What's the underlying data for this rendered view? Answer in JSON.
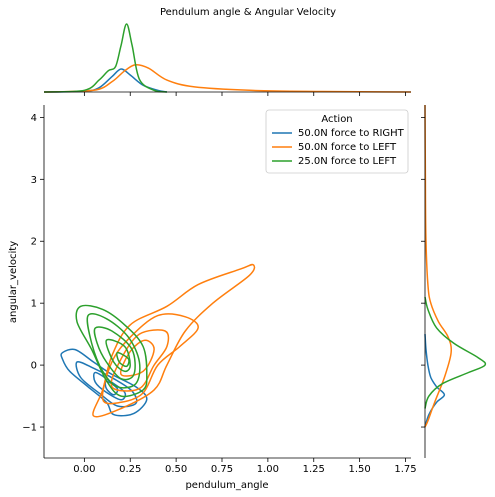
{
  "chart_data": {
    "type": "jointplot-kde",
    "title": "Pendulum angle & Angular Velocity",
    "xlabel": "pendulum_angle",
    "ylabel": "angular_velocity",
    "xlim": [
      -0.22,
      1.78
    ],
    "ylim": [
      -1.5,
      4.2
    ],
    "xticks": [
      0.0,
      0.25,
      0.5,
      0.75,
      1.0,
      1.25,
      1.5,
      1.75
    ],
    "xtick_labels": [
      "0.00",
      "0.25",
      "0.50",
      "0.75",
      "1.00",
      "1.25",
      "1.50",
      "1.75"
    ],
    "yticks": [
      -1,
      0,
      1,
      2,
      3,
      4
    ],
    "ytick_labels": [
      "−1",
      "0",
      "1",
      "2",
      "3",
      "4"
    ],
    "grid": false,
    "legend": {
      "title": "Action",
      "placement": "top-right",
      "entries": [
        "50.0N force to RIGHT",
        "50.0N force to LEFT",
        "25.0N force to LEFT"
      ]
    },
    "series": [
      {
        "name": "50.0N force to RIGHT",
        "color": "#1f77b4",
        "contours": [
          [
            [
              -0.12,
              0.2
            ],
            [
              -0.05,
              0.25
            ],
            [
              0.05,
              0.05
            ],
            [
              0.15,
              -0.15
            ],
            [
              0.28,
              -0.35
            ],
            [
              0.34,
              -0.55
            ],
            [
              0.27,
              -0.78
            ],
            [
              0.16,
              -0.8
            ],
            [
              0.12,
              -0.6
            ],
            [
              0.02,
              -0.35
            ],
            [
              -0.08,
              -0.1
            ],
            [
              -0.12,
              0.1
            ]
          ],
          [
            [
              -0.04,
              0.05
            ],
            [
              0.05,
              -0.05
            ],
            [
              0.16,
              -0.22
            ],
            [
              0.26,
              -0.42
            ],
            [
              0.28,
              -0.62
            ],
            [
              0.18,
              -0.66
            ],
            [
              0.08,
              -0.45
            ],
            [
              -0.02,
              -0.2
            ]
          ],
          [
            [
              0.06,
              -0.12
            ],
            [
              0.14,
              -0.26
            ],
            [
              0.22,
              -0.44
            ],
            [
              0.2,
              -0.56
            ],
            [
              0.12,
              -0.44
            ],
            [
              0.06,
              -0.28
            ]
          ],
          [
            [
              0.12,
              -0.26
            ],
            [
              0.18,
              -0.38
            ],
            [
              0.16,
              -0.48
            ],
            [
              0.12,
              -0.38
            ]
          ]
        ],
        "marginal_x": [
          [
            -0.22,
            0.0
          ],
          [
            0.0,
            0.01
          ],
          [
            0.08,
            0.05
          ],
          [
            0.15,
            0.18
          ],
          [
            0.2,
            0.27
          ],
          [
            0.25,
            0.2
          ],
          [
            0.32,
            0.08
          ],
          [
            0.4,
            0.02
          ],
          [
            0.45,
            0.0
          ]
        ],
        "marginal_y": [
          [
            0.5,
            0.0
          ],
          [
            0.25,
            0.01
          ],
          [
            0.0,
            0.03
          ],
          [
            -0.2,
            0.06
          ],
          [
            -0.35,
            0.12
          ],
          [
            -0.48,
            0.2
          ],
          [
            -0.6,
            0.12
          ],
          [
            -0.8,
            0.04
          ],
          [
            -1.0,
            0.0
          ]
        ]
      },
      {
        "name": "50.0N force to LEFT",
        "color": "#ff7f0e",
        "contours": [
          [
            [
              0.05,
              -0.82
            ],
            [
              0.1,
              -0.4
            ],
            [
              0.15,
              0.15
            ],
            [
              0.25,
              0.65
            ],
            [
              0.45,
              0.95
            ],
            [
              0.62,
              1.3
            ],
            [
              0.85,
              1.55
            ],
            [
              0.92,
              1.62
            ],
            [
              0.9,
              1.45
            ],
            [
              0.7,
              1.0
            ],
            [
              0.55,
              0.55
            ],
            [
              0.45,
              0.0
            ],
            [
              0.38,
              -0.4
            ],
            [
              0.2,
              -0.7
            ]
          ],
          [
            [
              0.1,
              -0.55
            ],
            [
              0.15,
              0.05
            ],
            [
              0.25,
              0.45
            ],
            [
              0.4,
              0.8
            ],
            [
              0.55,
              0.78
            ],
            [
              0.62,
              0.6
            ],
            [
              0.52,
              0.3
            ],
            [
              0.4,
              0.0
            ],
            [
              0.32,
              -0.45
            ],
            [
              0.2,
              -0.6
            ]
          ],
          [
            [
              0.15,
              -0.35
            ],
            [
              0.2,
              0.1
            ],
            [
              0.3,
              0.5
            ],
            [
              0.44,
              0.55
            ],
            [
              0.45,
              0.3
            ],
            [
              0.38,
              0.0
            ],
            [
              0.3,
              -0.38
            ]
          ],
          [
            [
              0.2,
              -0.15
            ],
            [
              0.25,
              0.22
            ],
            [
              0.33,
              0.4
            ],
            [
              0.38,
              0.25
            ],
            [
              0.32,
              -0.1
            ]
          ]
        ],
        "marginal_x": [
          [
            -0.22,
            0.0
          ],
          [
            0.05,
            0.02
          ],
          [
            0.15,
            0.12
          ],
          [
            0.22,
            0.25
          ],
          [
            0.28,
            0.32
          ],
          [
            0.35,
            0.28
          ],
          [
            0.45,
            0.14
          ],
          [
            0.6,
            0.06
          ],
          [
            0.9,
            0.02
          ],
          [
            1.3,
            0.006
          ],
          [
            1.78,
            0.0
          ]
        ],
        "marginal_y": [
          [
            4.2,
            0.0
          ],
          [
            3.0,
            0.004
          ],
          [
            2.0,
            0.01
          ],
          [
            1.3,
            0.03
          ],
          [
            1.0,
            0.06
          ],
          [
            0.7,
            0.14
          ],
          [
            0.45,
            0.24
          ],
          [
            0.2,
            0.27
          ],
          [
            -0.2,
            0.2
          ],
          [
            -0.6,
            0.1
          ],
          [
            -0.9,
            0.03
          ],
          [
            -1.0,
            0.0
          ]
        ]
      },
      {
        "name": "25.0N force to LEFT",
        "color": "#2ca02c",
        "contours": [
          [
            [
              -0.02,
              0.95
            ],
            [
              0.1,
              0.9
            ],
            [
              0.22,
              0.65
            ],
            [
              0.32,
              0.3
            ],
            [
              0.34,
              -0.15
            ],
            [
              0.32,
              -0.4
            ],
            [
              0.2,
              -0.5
            ],
            [
              0.12,
              -0.25
            ],
            [
              0.04,
              0.25
            ],
            [
              -0.04,
              0.7
            ]
          ],
          [
            [
              0.02,
              0.8
            ],
            [
              0.12,
              0.75
            ],
            [
              0.24,
              0.45
            ],
            [
              0.3,
              0.05
            ],
            [
              0.28,
              -0.3
            ],
            [
              0.18,
              -0.35
            ],
            [
              0.1,
              -0.1
            ],
            [
              0.04,
              0.35
            ]
          ],
          [
            [
              0.06,
              0.6
            ],
            [
              0.15,
              0.55
            ],
            [
              0.26,
              0.25
            ],
            [
              0.27,
              -0.15
            ],
            [
              0.2,
              -0.22
            ],
            [
              0.12,
              0.05
            ],
            [
              0.07,
              0.35
            ]
          ],
          [
            [
              0.12,
              0.4
            ],
            [
              0.22,
              0.3
            ],
            [
              0.25,
              0.0
            ],
            [
              0.22,
              -0.1
            ],
            [
              0.16,
              0.05
            ]
          ],
          [
            [
              0.18,
              0.2
            ],
            [
              0.24,
              0.1
            ],
            [
              0.23,
              -0.02
            ],
            [
              0.19,
              0.05
            ]
          ]
        ],
        "marginal_x": [
          [
            -0.22,
            0.0
          ],
          [
            0.0,
            0.02
          ],
          [
            0.08,
            0.14
          ],
          [
            0.13,
            0.25
          ],
          [
            0.17,
            0.3
          ],
          [
            0.2,
            0.55
          ],
          [
            0.23,
            0.8
          ],
          [
            0.26,
            0.55
          ],
          [
            0.3,
            0.15
          ],
          [
            0.38,
            0.02
          ],
          [
            0.45,
            0.0
          ]
        ],
        "marginal_y": [
          [
            1.1,
            0.0
          ],
          [
            0.9,
            0.03
          ],
          [
            0.6,
            0.12
          ],
          [
            0.35,
            0.3
          ],
          [
            0.12,
            0.55
          ],
          [
            0.0,
            0.62
          ],
          [
            -0.12,
            0.45
          ],
          [
            -0.3,
            0.18
          ],
          [
            -0.5,
            0.04
          ],
          [
            -0.7,
            0.0
          ]
        ]
      }
    ]
  }
}
